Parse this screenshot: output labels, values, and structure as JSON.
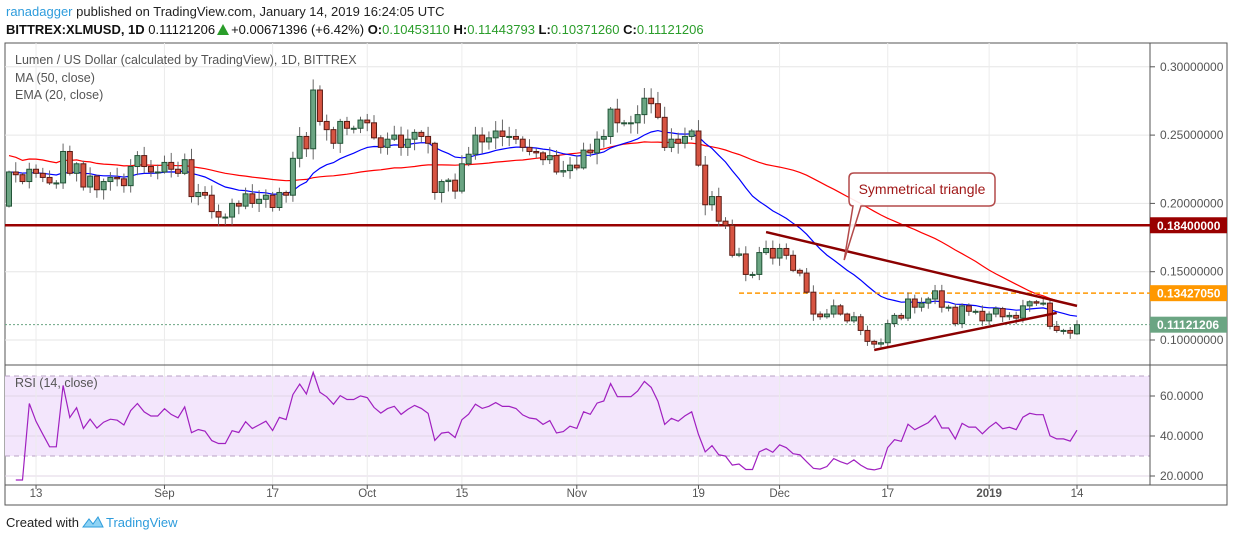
{
  "header": {
    "author": "ranadagger",
    "published": "published on TradingView.com, January 14, 2019 16:24:05 UTC",
    "symbol": "BITTREX:XLMUSD, 1D",
    "last": "0.11121206",
    "change": "+0.00671396 (+6.42%)",
    "o_label": "O:",
    "o": "0.10453110",
    "h_label": "H:",
    "h": "0.11443793",
    "l_label": "L:",
    "l": "0.10371260",
    "c_label": "C:",
    "c": "0.11121206"
  },
  "legend": {
    "title": "Lumen / US Dollar (calculated by TradingView), 1D, BITTREX",
    "ma": "MA (50, close)",
    "ema": "EMA (20, close)",
    "rsi": "RSI (14, close)"
  },
  "footer": {
    "created_with": "Created with",
    "brand": "TradingView"
  },
  "colors": {
    "up": "#6ba583",
    "up_border": "#225437",
    "down": "#d75442",
    "down_border": "#5b1a13",
    "ma50": "#ff0000",
    "ema20": "#0000ff",
    "rsi": "#a020c0",
    "rsi_band": "#f3e6fc",
    "resistance": "#990000",
    "level": "#ff9800",
    "last_price": "#6ba583",
    "triangle": "#8b0000",
    "brand": "#2e9cdc"
  },
  "chart_data": {
    "type": "candlestick",
    "start_date": "2018-08-09",
    "end_date": "2019-01-14",
    "interval": "1D",
    "first_open": 0.198,
    "close": [
      0.223,
      0.221,
      0.216,
      0.225,
      0.222,
      0.219,
      0.215,
      0.215,
      0.238,
      0.222,
      0.229,
      0.212,
      0.22,
      0.21,
      0.216,
      0.219,
      0.218,
      0.213,
      0.227,
      0.235,
      0.227,
      0.223,
      0.223,
      0.23,
      0.225,
      0.222,
      0.232,
      0.205,
      0.208,
      0.206,
      0.194,
      0.19,
      0.19,
      0.2,
      0.198,
      0.207,
      0.2,
      0.203,
      0.206,
      0.197,
      0.208,
      0.206,
      0.233,
      0.249,
      0.24,
      0.283,
      0.26,
      0.254,
      0.244,
      0.26,
      0.255,
      0.255,
      0.261,
      0.259,
      0.248,
      0.241,
      0.247,
      0.25,
      0.241,
      0.247,
      0.252,
      0.249,
      0.244,
      0.208,
      0.216,
      0.217,
      0.209,
      0.229,
      0.236,
      0.25,
      0.245,
      0.248,
      0.253,
      0.249,
      0.249,
      0.247,
      0.241,
      0.238,
      0.237,
      0.232,
      0.235,
      0.223,
      0.224,
      0.228,
      0.226,
      0.239,
      0.237,
      0.247,
      0.249,
      0.269,
      0.259,
      0.259,
      0.259,
      0.265,
      0.277,
      0.273,
      0.263,
      0.241,
      0.247,
      0.244,
      0.249,
      0.253,
      0.228,
      0.199,
      0.205,
      0.187,
      0.184,
      0.162,
      0.163,
      0.148,
      0.148,
      0.164,
      0.167,
      0.16,
      0.167,
      0.162,
      0.151,
      0.149,
      0.135,
      0.119,
      0.117,
      0.119,
      0.125,
      0.119,
      0.114,
      0.117,
      0.107,
      0.099,
      0.097,
      0.098,
      0.112,
      0.118,
      0.116,
      0.13,
      0.124,
      0.127,
      0.13,
      0.136,
      0.124,
      0.124,
      0.112,
      0.125,
      0.121,
      0.121,
      0.114,
      0.119,
      0.123,
      0.117,
      0.118,
      0.116,
      0.125,
      0.128,
      0.127,
      0.127,
      0.11,
      0.107,
      0.107,
      0.105,
      0.11121206
    ],
    "last_candle": {
      "open": 0.1045311,
      "high": 0.11443793,
      "low": 0.1037126,
      "close": 0.11121206
    },
    "indicators": [
      "MA (50, close)",
      "EMA (20, close)",
      "RSI (14, close)"
    ],
    "ylim": [
      0.07,
      0.32
    ],
    "y_ticks": [
      "0.30000000",
      "0.25000000",
      "0.20000000",
      "0.15000000",
      "0.10000000"
    ],
    "rsi_ylim": [
      15,
      75
    ],
    "rsi_ticks": [
      "60.0000",
      "40.0000",
      "20.0000"
    ],
    "rsi_band": [
      30,
      70
    ],
    "x_ticks": [
      {
        "label": "13",
        "date": "2018-08-13"
      },
      {
        "label": "Sep",
        "date": "2018-09-01"
      },
      {
        "label": "17",
        "date": "2018-09-17"
      },
      {
        "label": "Oct",
        "date": "2018-10-01"
      },
      {
        "label": "15",
        "date": "2018-10-15"
      },
      {
        "label": "Nov",
        "date": "2018-11-01"
      },
      {
        "label": "19",
        "date": "2018-11-19"
      },
      {
        "label": "Dec",
        "date": "2018-12-01"
      },
      {
        "label": "17",
        "date": "2018-12-17"
      },
      {
        "label": "2019",
        "date": "2019-01-01"
      },
      {
        "label": "14",
        "date": "2019-01-14"
      }
    ],
    "levels": [
      {
        "name": "resistance",
        "value": 0.184,
        "label": "0.18400000",
        "style": "solid"
      },
      {
        "name": "support-level",
        "value": 0.1342705,
        "label": "0.13427050",
        "style": "dashed",
        "from": "2018-11-25"
      },
      {
        "name": "last-price",
        "value": 0.11121206,
        "label": "0.11121206",
        "style": "dotted"
      }
    ],
    "triangle": {
      "upper": [
        {
          "date": "2018-11-29",
          "price": 0.179
        },
        {
          "date": "2019-01-14",
          "price": 0.125
        }
      ],
      "lower": [
        {
          "date": "2018-12-15",
          "price": 0.0927
        },
        {
          "date": "2019-01-11",
          "price": 0.1198
        }
      ]
    },
    "annotation": {
      "text": "Symmetrical triangle",
      "date": "2018-12-11",
      "price": 0.1585
    }
  }
}
